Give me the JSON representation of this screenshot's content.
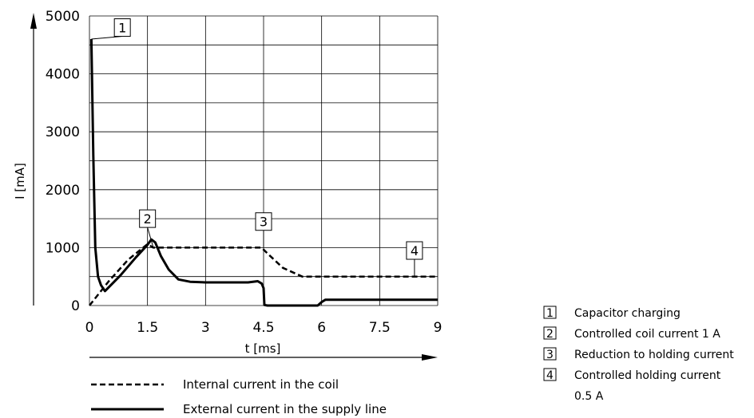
{
  "chart_data": {
    "type": "line",
    "xlabel": "t [ms]",
    "ylabel": "I [mA]",
    "xlim": [
      0,
      9
    ],
    "ylim": [
      0,
      5000
    ],
    "x_ticks": [
      "0",
      "1.5",
      "3",
      "4.5",
      "6",
      "7.5",
      "9"
    ],
    "y_ticks": [
      "0",
      "1000",
      "2000",
      "3000",
      "4000",
      "5000"
    ],
    "grid": true,
    "series": [
      {
        "name": "Internal current in the coil",
        "style": "dashed",
        "points": [
          [
            0,
            0
          ],
          [
            0.5,
            420
          ],
          [
            1.0,
            790
          ],
          [
            1.5,
            1060
          ],
          [
            1.65,
            1000
          ],
          [
            4.45,
            1000
          ],
          [
            4.6,
            900
          ],
          [
            5.0,
            650
          ],
          [
            5.5,
            500
          ],
          [
            9,
            500
          ]
        ]
      },
      {
        "name": "External current in the supply line",
        "style": "solid",
        "points": [
          [
            0.05,
            4600
          ],
          [
            0.1,
            2600
          ],
          [
            0.15,
            1000
          ],
          [
            0.22,
            500
          ],
          [
            0.3,
            350
          ],
          [
            0.4,
            250
          ],
          [
            0.8,
            520
          ],
          [
            1.2,
            830
          ],
          [
            1.5,
            1050
          ],
          [
            1.6,
            1140
          ],
          [
            1.7,
            1090
          ],
          [
            1.85,
            850
          ],
          [
            2.05,
            620
          ],
          [
            2.3,
            450
          ],
          [
            2.6,
            410
          ],
          [
            3,
            400
          ],
          [
            4.1,
            400
          ],
          [
            4.35,
            420
          ],
          [
            4.45,
            380
          ],
          [
            4.5,
            300
          ],
          [
            4.52,
            10
          ],
          [
            4.6,
            0
          ],
          [
            5.8,
            0
          ],
          [
            5.9,
            0
          ],
          [
            6.0,
            60
          ],
          [
            6.1,
            100
          ],
          [
            6.3,
            100
          ],
          [
            9,
            100
          ]
        ]
      }
    ],
    "markers": [
      {
        "id": "1",
        "label": "Capacitor charging",
        "x": 0.05,
        "y": 4600,
        "box_x": 0.85,
        "box_y": 4800
      },
      {
        "id": "2",
        "label": "Controlled coil current 1 A",
        "x": 1.65,
        "y": 1000,
        "box_x": 1.5,
        "box_y": 1500
      },
      {
        "id": "3",
        "label": "Reduction to holding current",
        "x": 4.5,
        "y": 1000,
        "box_x": 4.5,
        "box_y": 1450
      },
      {
        "id": "4",
        "label": "Controlled holding current",
        "label2": "0.5 A",
        "x": 8.4,
        "y": 500,
        "box_x": 8.4,
        "box_y": 950
      }
    ]
  }
}
